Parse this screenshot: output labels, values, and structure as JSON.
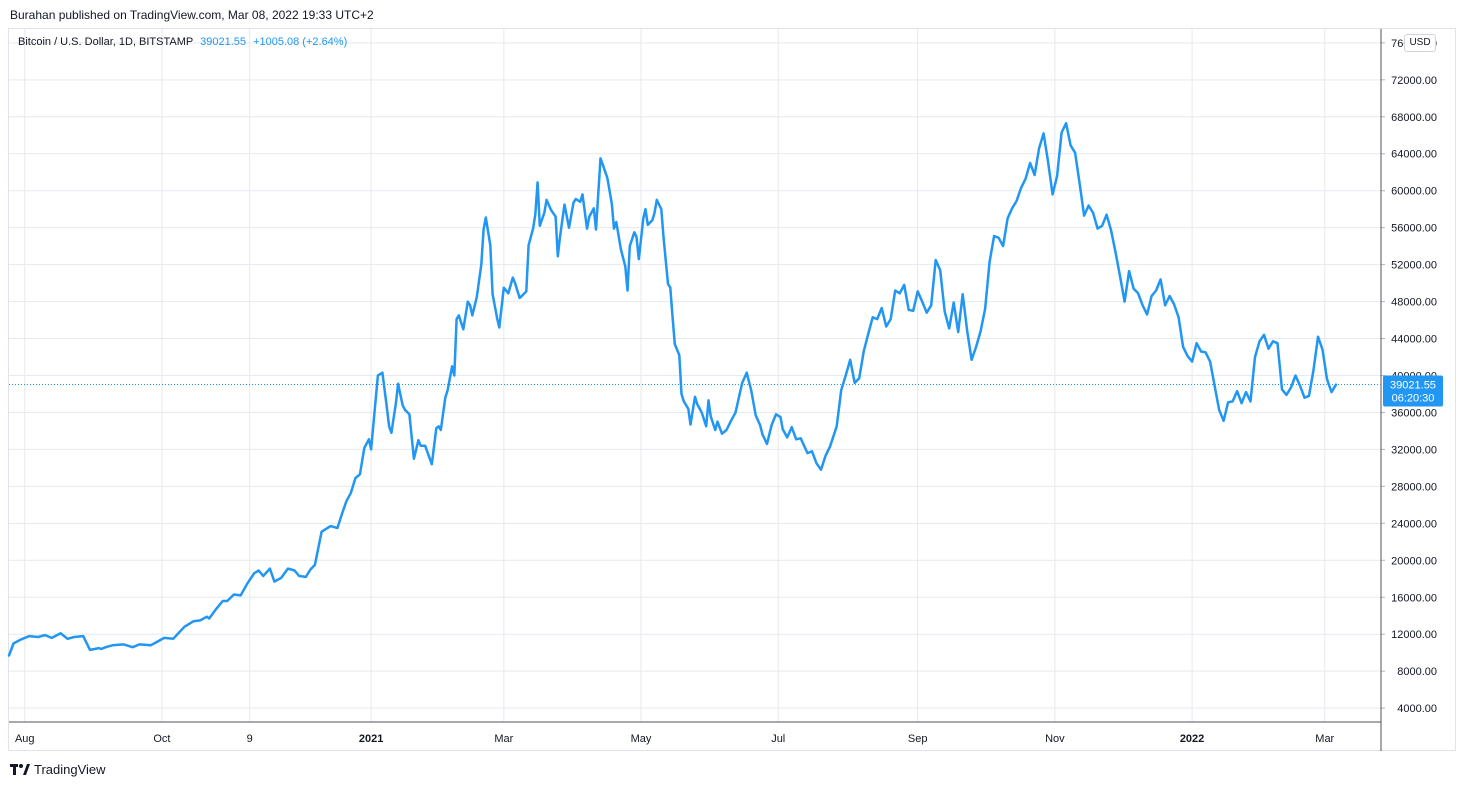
{
  "publisher_line": "Burahan published on TradingView.com, Mar 08, 2022 19:33 UTC+2",
  "legend": {
    "symbol": "Bitcoin / U.S. Dollar, 1D, BITSTAMP",
    "price": "39021.55",
    "change": "+1005.08 (+2.64%)"
  },
  "currency_button": "USD",
  "last_price_label": {
    "price": "39021.55",
    "countdown": "06:20:30"
  },
  "footer": {
    "brand": "TradingView",
    "logo_icon": "tradingview-logo-icon"
  },
  "colors": {
    "line": "#2196f3",
    "grid": "#e6e9ef",
    "text": "#131722"
  },
  "chart_data": {
    "type": "line",
    "title": "",
    "xlabel": "",
    "ylabel": "",
    "ylim": [
      2500,
      77500
    ],
    "grid": true,
    "y_ticks": [
      "4000.00",
      "8000.00",
      "12000.00",
      "16000.00",
      "20000.00",
      "24000.00",
      "28000.00",
      "32000.00",
      "36000.00",
      "40000.00",
      "44000.00",
      "48000.00",
      "52000.00",
      "56000.00",
      "60000.00",
      "64000.00",
      "68000.00",
      "72000.00",
      "76000.00"
    ],
    "x_ticks": [
      {
        "label": "Aug",
        "day": 14,
        "bold": false
      },
      {
        "label": "Oct",
        "day": 75,
        "bold": false
      },
      {
        "label": "9",
        "day": 114,
        "bold": false
      },
      {
        "label": "2021",
        "day": 168,
        "bold": true
      },
      {
        "label": "Mar",
        "day": 227,
        "bold": false
      },
      {
        "label": "May",
        "day": 288,
        "bold": false
      },
      {
        "label": "Jul",
        "day": 349,
        "bold": false
      },
      {
        "label": "Sep",
        "day": 411,
        "bold": false
      },
      {
        "label": "Nov",
        "day": 472,
        "bold": false
      },
      {
        "label": "2022",
        "day": 533,
        "bold": true
      },
      {
        "label": "Mar",
        "day": 592,
        "bold": false
      }
    ],
    "x_range_days": [
      7,
      617
    ],
    "last_price": 39021.55,
    "series": [
      {
        "x": [
          7,
          9,
          12,
          16,
          20,
          23,
          26,
          30,
          33,
          36,
          40,
          43,
          47,
          48,
          50,
          53,
          58,
          62,
          65,
          70,
          73,
          76,
          80,
          85,
          89,
          92,
          95,
          96,
          99,
          102,
          104,
          107,
          110,
          113,
          116,
          118,
          120,
          123,
          125,
          128,
          131,
          134,
          136,
          139,
          141,
          143,
          146,
          150,
          153,
          155,
          157,
          159,
          161,
          163,
          165,
          167,
          168,
          170,
          171,
          173,
          175,
          176,
          177,
          179,
          180,
          182,
          183,
          185,
          187,
          189,
          190,
          192,
          195,
          197,
          198,
          199,
          201,
          202,
          204,
          205,
          206,
          207,
          209,
          211,
          212,
          213,
          215,
          217,
          218,
          219,
          221,
          222,
          224,
          225,
          227,
          229,
          231,
          232,
          234,
          235,
          237,
          238,
          240,
          241,
          242,
          243,
          245,
          246,
          248,
          250,
          251,
          252,
          254,
          256,
          258,
          259,
          261,
          262,
          264,
          265,
          267,
          268,
          270,
          271,
          273,
          275,
          276,
          277,
          279,
          281,
          282,
          283,
          285,
          286,
          287,
          289,
          290,
          291,
          293,
          294,
          295,
          297,
          298,
          300,
          301,
          302,
          303,
          305,
          306,
          307,
          309,
          310,
          312,
          313,
          315,
          317,
          318,
          319,
          321,
          322,
          324,
          326,
          328,
          330,
          333,
          335,
          337,
          339,
          341,
          342,
          344,
          346,
          348,
          350,
          351,
          353,
          355,
          357,
          359,
          362,
          364,
          366,
          368,
          370,
          372,
          375,
          377,
          379,
          381,
          383,
          385,
          387,
          389,
          391,
          393,
          395,
          397,
          399,
          401,
          403,
          405,
          407,
          409,
          411,
          413,
          415,
          417,
          419,
          421,
          423,
          425,
          427,
          429,
          431,
          433,
          435,
          437,
          439,
          441,
          443,
          445,
          447,
          449,
          451,
          453,
          455,
          457,
          459,
          461,
          463,
          465,
          467,
          469,
          471,
          473,
          475,
          477,
          479,
          481,
          483,
          485,
          487,
          489,
          491,
          493,
          495,
          497,
          499,
          501,
          503,
          505,
          507,
          509,
          511,
          513,
          515,
          517,
          519,
          521,
          523,
          525,
          527,
          529,
          531,
          533,
          535,
          537,
          539,
          541,
          543,
          545,
          547,
          549,
          551,
          553,
          555,
          557,
          559,
          561,
          563,
          565,
          567,
          569,
          571,
          573,
          575,
          577,
          579,
          581,
          583,
          585,
          587,
          589,
          591,
          593,
          595,
          597
        ],
        "y": [
          9700,
          11000,
          11400,
          11800,
          11700,
          11900,
          11600,
          12100,
          11500,
          11700,
          11800,
          10300,
          10500,
          10400,
          10600,
          10800,
          10900,
          10600,
          10900,
          10800,
          11200,
          11600,
          11500,
          12800,
          13400,
          13500,
          13900,
          13700,
          14700,
          15600,
          15600,
          16300,
          16200,
          17500,
          18600,
          18900,
          18300,
          19100,
          17700,
          18100,
          19100,
          18900,
          18300,
          18200,
          19000,
          19500,
          23100,
          23700,
          23500,
          25000,
          26400,
          27300,
          28900,
          29300,
          32200,
          33100,
          32000,
          37300,
          40000,
          40300,
          36500,
          34500,
          33800,
          37000,
          39100,
          36800,
          36300,
          35800,
          31000,
          33000,
          32400,
          32400,
          30400,
          34300,
          34500,
          34100,
          37600,
          38400,
          41000,
          40000,
          46100,
          46500,
          45000,
          48000,
          47600,
          46500,
          48500,
          52000,
          55800,
          57100,
          54100,
          48800,
          46200,
          45200,
          49500,
          48900,
          50600,
          50000,
          48400,
          48600,
          49100,
          54100,
          55900,
          57400,
          60900,
          56200,
          57600,
          59000,
          57900,
          57200,
          52900,
          55000,
          58500,
          56000,
          58700,
          59100,
          58800,
          59600,
          55900,
          57200,
          58100,
          55800,
          63500,
          62800,
          61400,
          58600,
          55900,
          56600,
          53700,
          51800,
          49200,
          54000,
          55500,
          55000,
          52600,
          57000,
          58000,
          56300,
          56800,
          57600,
          59000,
          58000,
          55000,
          49900,
          49500,
          46400,
          43400,
          42200,
          38000,
          37200,
          36400,
          34700,
          37700,
          36900,
          36000,
          34500,
          37300,
          35600,
          34100,
          35000,
          33700,
          34100,
          35100,
          36000,
          39200,
          40300,
          38400,
          35700,
          34600,
          33600,
          32600,
          34600,
          35800,
          35500,
          34200,
          33300,
          34400,
          33100,
          33200,
          31600,
          31800,
          30500,
          29800,
          31300,
          32300,
          34500,
          38400,
          40000,
          41700,
          39200,
          39700,
          42600,
          44500,
          46300,
          46100,
          47300,
          45300,
          46100,
          49200,
          48900,
          49800,
          47100,
          47000,
          49100,
          48000,
          46800,
          47600,
          52500,
          51400,
          46900,
          45100,
          47900,
          44700,
          48800,
          44800,
          41700,
          43100,
          44800,
          47200,
          52300,
          55100,
          54900,
          54000,
          57000,
          58100,
          58900,
          60300,
          61300,
          63000,
          61700,
          64600,
          66200,
          63100,
          59600,
          61600,
          66300,
          67300,
          64900,
          64100,
          60800,
          57300,
          58400,
          57600,
          55900,
          56200,
          57400,
          55700,
          53300,
          50700,
          48000,
          51300,
          49400,
          48900,
          47600,
          46600,
          48600,
          49200,
          50400,
          47600,
          48600,
          47700,
          46300,
          43100,
          42100,
          41500,
          43500,
          42600,
          42500,
          41500,
          38900,
          36300,
          35100,
          37100,
          37200,
          38300,
          37000,
          38200,
          37200,
          42000,
          43700,
          44400,
          42900,
          43700,
          43500,
          38500,
          37900,
          38700,
          40000,
          38900,
          37600,
          37800,
          40600,
          44200,
          42800,
          39600,
          38200,
          39000
        ]
      }
    ]
  }
}
